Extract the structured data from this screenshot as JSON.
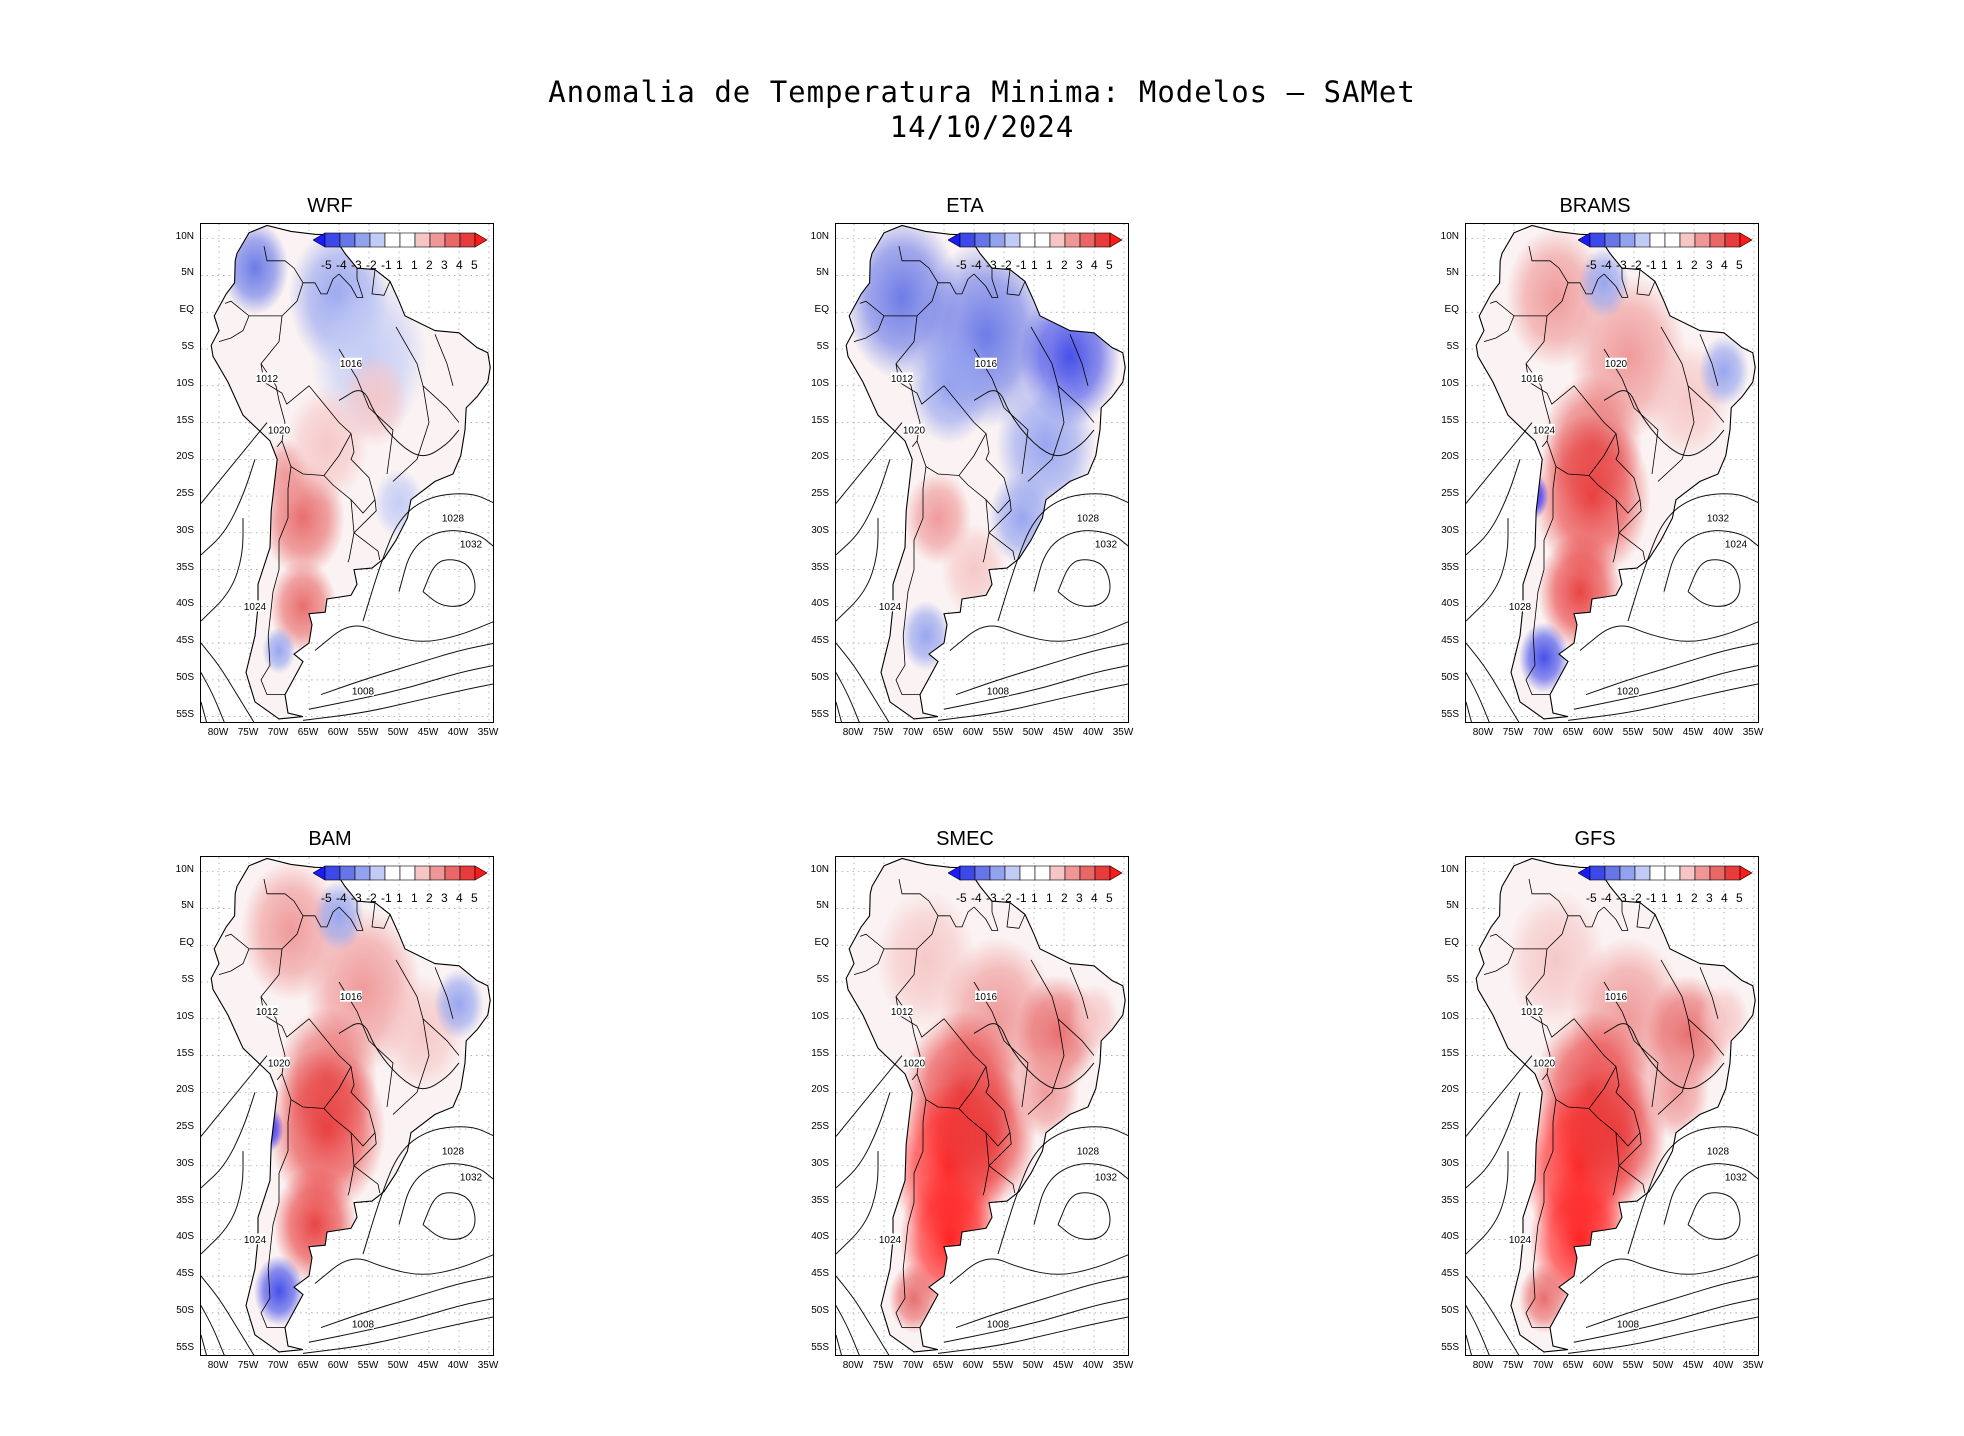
{
  "figure": {
    "title_line1": "Anomalia de Temperatura Minima: Modelos — SAMet",
    "title_line2": "14/10/2024"
  },
  "lat_labels": [
    "10N",
    "5N",
    "EQ",
    "5S",
    "10S",
    "15S",
    "20S",
    "25S",
    "30S",
    "35S",
    "40S",
    "45S",
    "50S",
    "55S"
  ],
  "lon_labels": [
    "80W",
    "75W",
    "70W",
    "65W",
    "60W",
    "55W",
    "50W",
    "45W",
    "40W",
    "35W"
  ],
  "colorbar": {
    "labels": [
      "-5",
      "-4",
      "-3",
      "-2",
      "-1",
      "1",
      "1",
      "2",
      "3",
      "4",
      "5"
    ],
    "colors": [
      "#1a1aff",
      "#3d48e8",
      "#6676e6",
      "#93a2ef",
      "#c2cbf6",
      "#ffffff",
      "#ffffff",
      "#f6c6c6",
      "#ef9696",
      "#e86868",
      "#e83b3b",
      "#ff1a1a"
    ]
  },
  "panels": [
    {
      "name": "WRF",
      "tendency": "mixed",
      "isobar_labels": [
        "1012",
        "1016",
        "1020",
        "1024",
        "1028",
        "1032",
        "1008"
      ]
    },
    {
      "name": "ETA",
      "tendency": "cold",
      "isobar_labels": [
        "1012",
        "1016",
        "1020",
        "1024",
        "1028",
        "1032",
        "1008"
      ]
    },
    {
      "name": "BRAMS",
      "tendency": "warm",
      "isobar_labels": [
        "1016",
        "1020",
        "1024",
        "1028",
        "1032",
        "1024",
        "1020"
      ]
    },
    {
      "name": "BAM",
      "tendency": "warm",
      "isobar_labels": [
        "1012",
        "1016",
        "1020",
        "1024",
        "1028",
        "1032",
        "1008"
      ]
    },
    {
      "name": "SMEC",
      "tendency": "hot",
      "isobar_labels": [
        "1012",
        "1016",
        "1020",
        "1024",
        "1028",
        "1032",
        "1008"
      ]
    },
    {
      "name": "GFS",
      "tendency": "hot",
      "isobar_labels": [
        "1012",
        "1016",
        "1020",
        "1024",
        "1028",
        "1032",
        "1008"
      ]
    }
  ]
}
